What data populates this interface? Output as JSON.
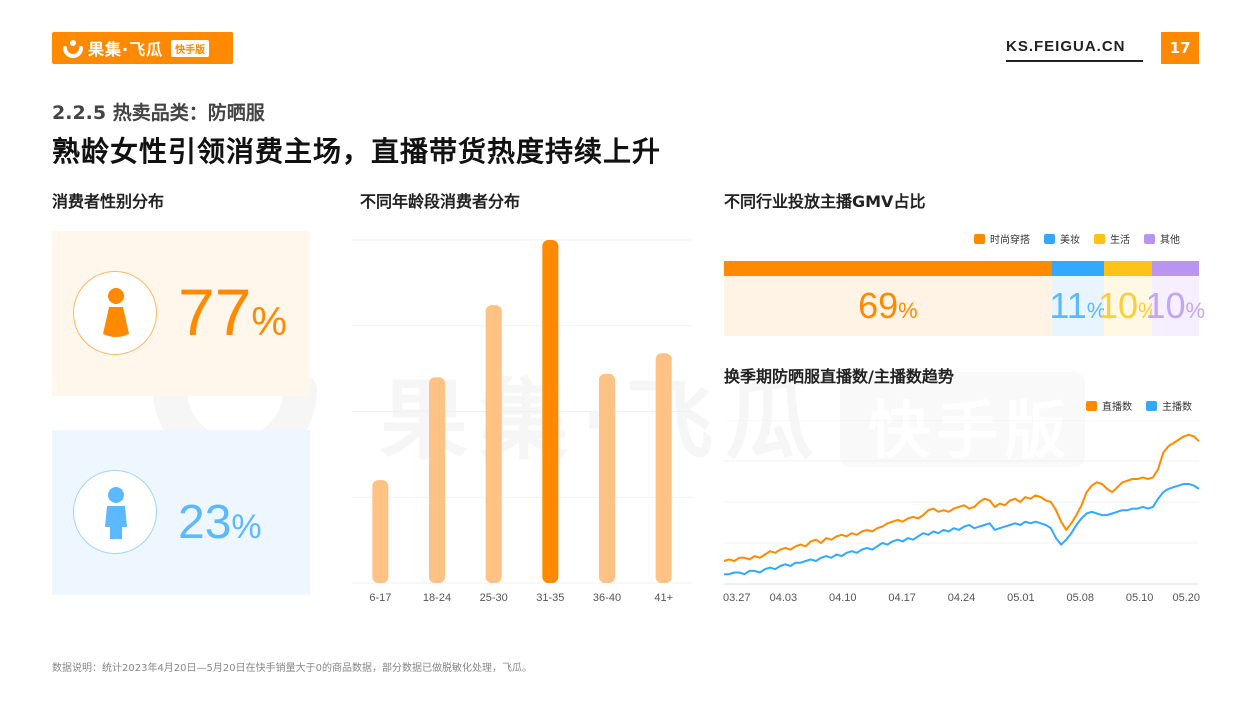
{
  "header": {
    "brand": "果集·飞瓜",
    "brand_tag": "快手版",
    "site": "KS.FEIGUA.CN",
    "page_number": "17",
    "accent_color": "#ff8a00"
  },
  "section_title": "2.2.5 热卖品类：防晒服",
  "headline": "熟龄女性引领消费主场，直播带货热度持续上升",
  "watermark": {
    "brand": "果集·飞瓜",
    "tag": "快手版"
  },
  "gender": {
    "title": "消费者性别分布",
    "female": {
      "value": "77",
      "unit": "%",
      "icon": "female-icon",
      "color": "#ff8a00"
    },
    "male": {
      "value": "23",
      "unit": "%",
      "icon": "male-icon",
      "color": "#5cb9ff"
    }
  },
  "age": {
    "title": "不同年龄段消费者分布"
  },
  "gmv": {
    "title": "不同行业投放主播GMV占比",
    "legend": [
      "时尚穿搭",
      "美妆",
      "生活",
      "其他"
    ],
    "segments": [
      {
        "name": "时尚穿搭",
        "value": "69",
        "unit": "%",
        "share": 0.69,
        "color": "#ff8a00",
        "text_color": "#ff8a00",
        "bg": "#fff3e6"
      },
      {
        "name": "美妆",
        "value": "11",
        "unit": "%",
        "share": 0.11,
        "color": "#32a8ff",
        "text_color": "#5cb9ff",
        "bg": "#e8f5ff"
      },
      {
        "name": "生活",
        "value": "10",
        "unit": "%",
        "share": 0.1,
        "color": "#ffc21a",
        "text_color": "#ffcc3a",
        "bg": "#fff8e3"
      },
      {
        "name": "其他",
        "value": "10",
        "unit": "%",
        "share": 0.1,
        "color": "#b994f0",
        "text_color": "#c3a6f2",
        "bg": "#f5efff"
      }
    ]
  },
  "trend": {
    "title": "换季期防晒服直播数/主播数趋势",
    "legend": [
      "直播数",
      "主播数"
    ]
  },
  "chart_data": [
    {
      "type": "bar",
      "title": "不同年龄段消费者分布",
      "categories": [
        "6-17",
        "18-24",
        "25-30",
        "31-35",
        "36-40",
        "41+"
      ],
      "values": [
        30,
        60,
        81,
        100,
        61,
        67
      ],
      "highlight_index": 3,
      "colors": {
        "bar": "#ffc285",
        "highlight": "#ff8a00"
      },
      "ylim": [
        0,
        100
      ],
      "grid": true
    },
    {
      "type": "line",
      "title": "换季期防晒服直播数/主播数趋势",
      "x_ticks": [
        "03.27",
        "04.03",
        "04.10",
        "04.17",
        "04.24",
        "05.01",
        "05.08",
        "05.10",
        "05.20"
      ],
      "ylim": [
        0,
        100
      ],
      "grid": true,
      "series": [
        {
          "name": "直播数",
          "color": "#ff8a00",
          "values": [
            14,
            15,
            14,
            16,
            16,
            15,
            17,
            16,
            18,
            20,
            19,
            21,
            22,
            21,
            23,
            24,
            23,
            26,
            27,
            25,
            28,
            27,
            29,
            30,
            29,
            31,
            30,
            32,
            33,
            32,
            34,
            35,
            37,
            38,
            39,
            38,
            40,
            41,
            40,
            42,
            45,
            46,
            44,
            45,
            44,
            46,
            47,
            48,
            46,
            47,
            50,
            52,
            51,
            47,
            49,
            48,
            51,
            52,
            50,
            53,
            52,
            54,
            53,
            51,
            50,
            45,
            38,
            33,
            37,
            42,
            48,
            56,
            60,
            62,
            61,
            58,
            56,
            59,
            62,
            63,
            64,
            64,
            65,
            64,
            65,
            70,
            80,
            84,
            86,
            88,
            90,
            91,
            90,
            87
          ]
        },
        {
          "name": "主播数",
          "color": "#32a8ff",
          "values": [
            6,
            6,
            7,
            7,
            6,
            8,
            8,
            7,
            9,
            10,
            9,
            11,
            12,
            11,
            13,
            13,
            14,
            15,
            14,
            16,
            17,
            16,
            18,
            17,
            19,
            20,
            19,
            21,
            22,
            21,
            23,
            25,
            24,
            26,
            27,
            26,
            28,
            27,
            29,
            31,
            30,
            32,
            31,
            33,
            32,
            34,
            33,
            35,
            36,
            34,
            35,
            36,
            37,
            33,
            34,
            35,
            36,
            37,
            36,
            38,
            37,
            38,
            37,
            36,
            34,
            28,
            24,
            27,
            31,
            36,
            40,
            43,
            44,
            43,
            42,
            42,
            43,
            44,
            45,
            45,
            46,
            46,
            47,
            46,
            47,
            52,
            56,
            58,
            59,
            60,
            61,
            61,
            60,
            58
          ]
        }
      ]
    }
  ],
  "footnote": "数据说明：统计2023年4月20日—5月20日在快手销量大于0的商品数据，部分数据已做脱敏化处理，飞瓜。"
}
